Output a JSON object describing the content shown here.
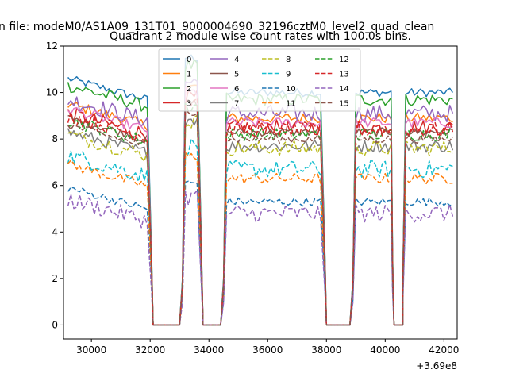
{
  "figure": {
    "suptitle": "n file: modeM0/AS1A09_131T01_9000004690_32196cztM0_level2_quad_clean"
  },
  "chart_data": {
    "type": "line",
    "title": "Quadrant 2 module wise count rates with 100.0s bins.",
    "xlabel": "",
    "ylabel": "",
    "x_offset_label": "+3.69e8",
    "xlim": [
      29050,
      42450
    ],
    "ylim": [
      -0.6,
      12.0
    ],
    "xticks": [
      30000,
      32000,
      34000,
      36000,
      38000,
      40000,
      42000
    ],
    "xtick_labels": [
      "30000",
      "32000",
      "34000",
      "36000",
      "38000",
      "40000",
      "42000"
    ],
    "yticks": [
      0,
      2,
      4,
      6,
      8,
      10,
      12
    ],
    "ytick_labels": [
      "0",
      "2",
      "4",
      "6",
      "8",
      "10",
      "12"
    ],
    "grid": false,
    "legend_placement": "top-center",
    "legend_columns": 4,
    "x_segments": [
      {
        "start": 29200,
        "end": 31900
      },
      {
        "start": 33200,
        "end": 33600
      },
      {
        "start": 34600,
        "end": 37800
      },
      {
        "start": 39000,
        "end": 40200
      },
      {
        "start": 40700,
        "end": 42300
      }
    ],
    "gaps": [
      {
        "from": 32100,
        "to": 33000
      },
      {
        "from": 33800,
        "to": 34400
      },
      {
        "from": 38000,
        "to": 38800
      },
      {
        "from": 40300,
        "to": 40600
      }
    ],
    "series": [
      {
        "name": "0",
        "color": "#1f77b4",
        "dash": "solid",
        "level": 10.0
      },
      {
        "name": "1",
        "color": "#ff7f0e",
        "dash": "solid",
        "level": 8.9
      },
      {
        "name": "2",
        "color": "#2ca02c",
        "dash": "solid",
        "level": 9.7
      },
      {
        "name": "3",
        "color": "#d62728",
        "dash": "solid",
        "level": 8.5
      },
      {
        "name": "4",
        "color": "#9467bd",
        "dash": "solid",
        "level": 9.1
      },
      {
        "name": "5",
        "color": "#8c564b",
        "dash": "solid",
        "level": 8.3
      },
      {
        "name": "6",
        "color": "#e377c2",
        "dash": "solid",
        "level": 8.7
      },
      {
        "name": "7",
        "color": "#7f7f7f",
        "dash": "solid",
        "level": 7.7
      },
      {
        "name": "8",
        "color": "#bcbd22",
        "dash": "dashed",
        "level": 7.6
      },
      {
        "name": "9",
        "color": "#17becf",
        "dash": "dashed",
        "level": 6.7
      },
      {
        "name": "10",
        "color": "#1f77b4",
        "dash": "dashed",
        "level": 5.3
      },
      {
        "name": "11",
        "color": "#ff7f0e",
        "dash": "dashed",
        "level": 6.3
      },
      {
        "name": "12",
        "color": "#2ca02c",
        "dash": "dashed",
        "level": 8.2
      },
      {
        "name": "13",
        "color": "#d62728",
        "dash": "dashed",
        "level": 8.4
      },
      {
        "name": "14",
        "color": "#9467bd",
        "dash": "dashed",
        "level": 4.8
      },
      {
        "name": "15",
        "color": "#8c564b",
        "dash": "dashed",
        "level": 8.0
      }
    ]
  }
}
